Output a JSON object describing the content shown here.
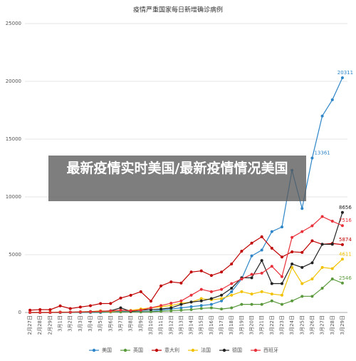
{
  "chart_data": {
    "type": "line",
    "title": "疫情严重国家每日新增确诊病例",
    "categories": [
      "2月27日",
      "2月28日",
      "2月29日",
      "3月1日",
      "3月2日",
      "3月3日",
      "3月4日",
      "3月5日",
      "3月6日",
      "3月7日",
      "3月8日",
      "3月9日",
      "3月10日",
      "3月11日",
      "3月12日",
      "3月13日",
      "3月14日",
      "3月15日",
      "3月16日",
      "3月17日",
      "3月18日",
      "3月19日",
      "3月20日",
      "3月21日",
      "3月22日",
      "3月23日",
      "3月24日",
      "3月25日",
      "3月26日",
      "3月27日",
      "3月28日",
      "3月29日"
    ],
    "series": [
      {
        "name": "美国",
        "color": "#2e86c8",
        "values": [
          0,
          0,
          0,
          0,
          0,
          0,
          0,
          0,
          50,
          100,
          100,
          100,
          100,
          200,
          300,
          400,
          500,
          600,
          700,
          1000,
          1800,
          2900,
          4900,
          5400,
          7000,
          7400,
          12300,
          9000,
          13361,
          17000,
          18400,
          20311
        ]
      },
      {
        "name": "英国",
        "color": "#5a9a3c",
        "values": [
          0,
          0,
          0,
          0,
          10,
          20,
          30,
          40,
          50,
          50,
          60,
          50,
          70,
          100,
          150,
          200,
          250,
          350,
          400,
          300,
          400,
          700,
          700,
          700,
          1000,
          700,
          1000,
          1400,
          1400,
          2100,
          2900,
          2546
        ]
      },
      {
        "name": "意大利",
        "color": "#c00000",
        "values": [
          200,
          250,
          240,
          570,
          340,
          470,
          590,
          770,
          780,
          1250,
          1490,
          1800,
          980,
          2300,
          2650,
          2550,
          3500,
          3600,
          3200,
          3500,
          4200,
          5300,
          6000,
          6550,
          5560,
          4800,
          5250,
          5200,
          6200,
          5900,
          5970,
          5874
        ]
      },
      {
        "name": "法国",
        "color": "#f2c200",
        "values": [
          0,
          0,
          20,
          40,
          30,
          60,
          80,
          140,
          100,
          200,
          180,
          300,
          400,
          500,
          600,
          800,
          900,
          1200,
          1100,
          1200,
          1500,
          1800,
          1600,
          1800,
          1600,
          1500,
          3900,
          2500,
          2900,
          3900,
          3800,
          4611
        ]
      },
      {
        "name": "德国",
        "color": "#222222",
        "values": [
          0,
          0,
          0,
          20,
          30,
          50,
          80,
          100,
          150,
          400,
          100,
          200,
          250,
          300,
          400,
          700,
          900,
          1000,
          1200,
          1500,
          2100,
          3000,
          3000,
          4500,
          2500,
          2500,
          4200,
          3900,
          4300,
          5900,
          5900,
          8656
        ]
      },
      {
        "name": "西班牙",
        "color": "#e8303a",
        "values": [
          0,
          0,
          0,
          20,
          20,
          50,
          60,
          100,
          130,
          200,
          150,
          200,
          400,
          600,
          800,
          1000,
          1500,
          2000,
          1800,
          2000,
          2500,
          2900,
          3300,
          3400,
          4000,
          3100,
          6500,
          7000,
          7500,
          8300,
          7900,
          7516
        ]
      }
    ],
    "ylim": [
      0,
      25000
    ],
    "yticks": [
      0,
      5000,
      10000,
      15000,
      20000,
      25000
    ],
    "grid": true,
    "labeled_points": [
      [
        0,
        28
      ],
      [
        0,
        31
      ],
      [
        4,
        31
      ],
      [
        5,
        31
      ],
      [
        2,
        31
      ],
      [
        3,
        31
      ],
      [
        1,
        31
      ]
    ]
  },
  "banner": {
    "text": "最新疫情实时美国/最新疫情情况美国"
  }
}
